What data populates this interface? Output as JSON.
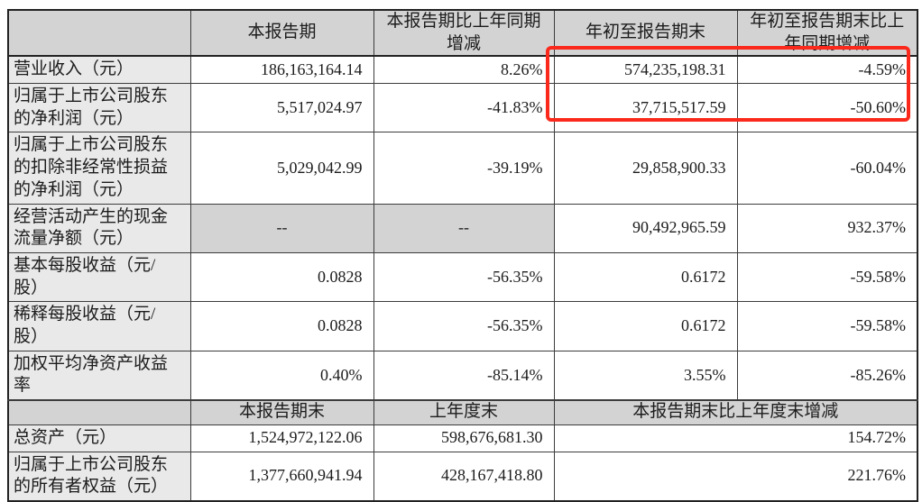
{
  "colors": {
    "highlight_box": "#fa291c",
    "header_bg": "#d3d3d3",
    "label_bg": "#e9e9e9",
    "border": "#3c3c3c"
  },
  "section1": {
    "headers": {
      "blank": "",
      "period": "本报告期",
      "period_yoy": "本报告期比上年同期\n增减",
      "ytd": "年初至报告期末",
      "ytd_yoy": "年初至报告期末比上\n年同期增减"
    },
    "rows": [
      {
        "label": "营业收入（元）",
        "period": "186,163,164.14",
        "period_yoy": "8.26%",
        "ytd": "574,235,198.31",
        "ytd_yoy": "-4.59%"
      },
      {
        "label": "归属于上市公司股东\n的净利润（元）",
        "period": "5,517,024.97",
        "period_yoy": "-41.83%",
        "ytd": "37,715,517.59",
        "ytd_yoy": "-50.60%"
      },
      {
        "label": "归属于上市公司股东\n的扣除非经常性损益\n的净利润（元）",
        "period": "5,029,042.99",
        "period_yoy": "-39.19%",
        "ytd": "29,858,900.33",
        "ytd_yoy": "-60.04%"
      },
      {
        "label": "经营活动产生的现金\n流量净额（元）",
        "period": "--",
        "period_yoy": "--",
        "ytd": "90,492,965.59",
        "ytd_yoy": "932.37%"
      },
      {
        "label": "基本每股收益（元/\n股）",
        "period": "0.0828",
        "period_yoy": "-56.35%",
        "ytd": "0.6172",
        "ytd_yoy": "-59.58%"
      },
      {
        "label": "稀释每股收益（元/\n股）",
        "period": "0.0828",
        "period_yoy": "-56.35%",
        "ytd": "0.6172",
        "ytd_yoy": "-59.58%"
      },
      {
        "label": "加权平均净资产收益\n率",
        "period": "0.40%",
        "period_yoy": "-85.14%",
        "ytd": "3.55%",
        "ytd_yoy": "-85.26%"
      }
    ]
  },
  "section2": {
    "headers": {
      "blank": "",
      "period_end": "本报告期末",
      "prev_year_end": "上年度末",
      "change": "本报告期末比上年度末增减"
    },
    "rows": [
      {
        "label": "总资产（元）",
        "period_end": "1,524,972,122.06",
        "prev_year_end": "598,676,681.30",
        "change": "154.72%"
      },
      {
        "label": "归属于上市公司股东\n的所有者权益（元）",
        "period_end": "1,377,660,941.94",
        "prev_year_end": "428,167,418.80",
        "change": "221.76%"
      }
    ]
  }
}
